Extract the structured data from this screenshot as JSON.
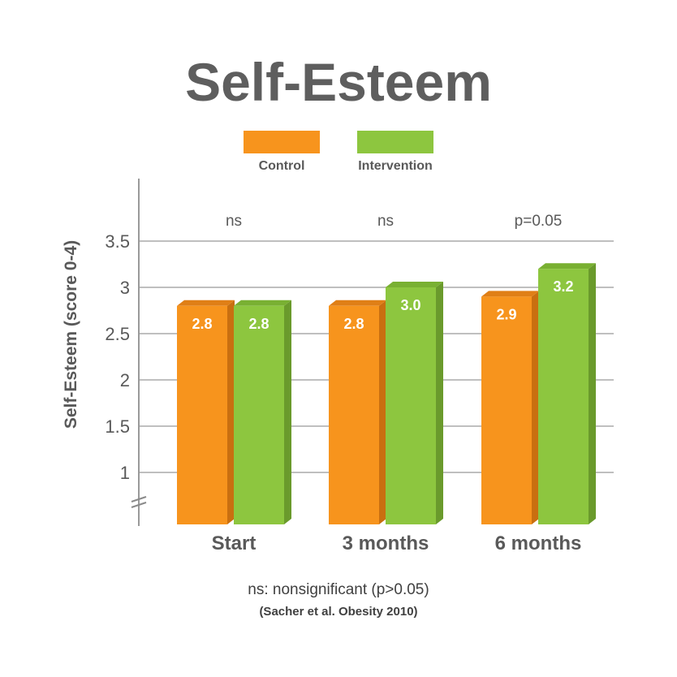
{
  "chart_data": {
    "type": "bar",
    "title": "Self-Esteem",
    "ylabel": "Self-Esteem (score 0-4)",
    "xlabel": "",
    "categories": [
      "Start",
      "3 months",
      "6 months"
    ],
    "series": [
      {
        "name": "Control",
        "values": [
          2.8,
          2.8,
          2.9
        ],
        "labels": [
          "2.8",
          "2.8",
          "2.9"
        ]
      },
      {
        "name": "Intervention",
        "values": [
          2.8,
          3.0,
          3.2
        ],
        "labels": [
          "2.8",
          "3.0",
          "3.2"
        ]
      }
    ],
    "significance": [
      "ns",
      "ns",
      "p=0.05"
    ],
    "yticks": [
      "1",
      "1.5",
      "2",
      "2.5",
      "3",
      "3.5"
    ],
    "ytick_values": [
      1,
      1.5,
      2,
      2.5,
      3,
      3.5
    ],
    "ylim": [
      0.5,
      3.5
    ],
    "axis_break": true,
    "grid": true,
    "legend": "top-center",
    "footnote": "ns: nonsignificant (p>0.05)",
    "source": "(Sacher et al. Obesity 2010)"
  },
  "colors": {
    "control": "#f7941d",
    "control_side": "#c96f10",
    "control_top": "#e07f16",
    "intervention": "#8dc63f",
    "intervention_side": "#6a9a2c",
    "intervention_top": "#79b032"
  }
}
